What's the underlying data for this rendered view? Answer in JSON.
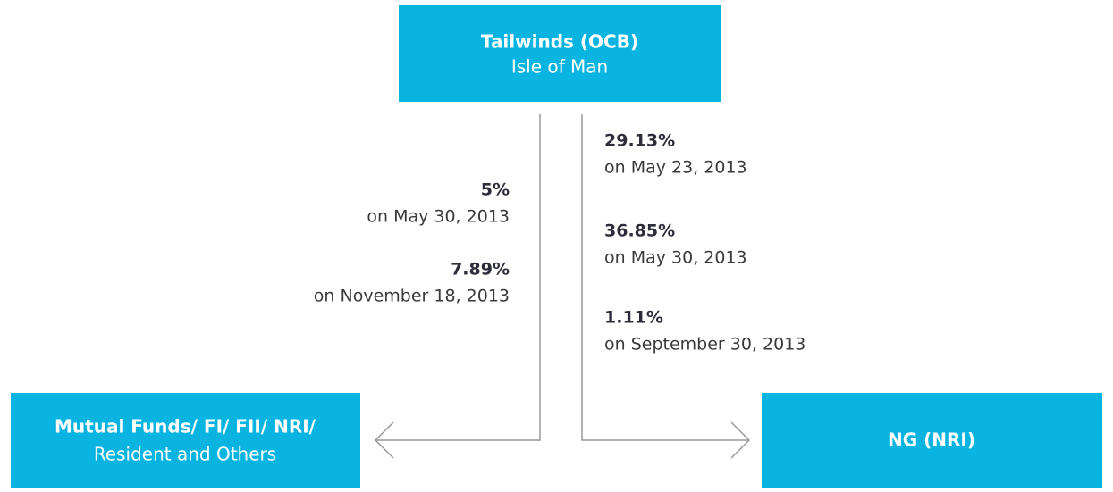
{
  "nodes": [
    {
      "title": "Tailwinds (OCB)",
      "subtitle": "Isle of Man"
    },
    {
      "title": "Mutual Funds/ FI/ FII/ NRI/",
      "subtitle": "Resident and Others"
    },
    {
      "title": "NG (NRI)"
    }
  ],
  "edges": [
    {
      "labels": [
        {
          "share": "5%",
          "date": "on May 30, 2013"
        },
        {
          "share": "7.89%",
          "date": "on November 18, 2013"
        }
      ]
    },
    {
      "labels": [
        {
          "share": "29.13%",
          "date": "on May 23, 2013"
        },
        {
          "share": "36.85%",
          "date": "on May 30, 2013"
        },
        {
          "share": "1.11%",
          "date": "on September 30, 2013"
        }
      ]
    }
  ]
}
